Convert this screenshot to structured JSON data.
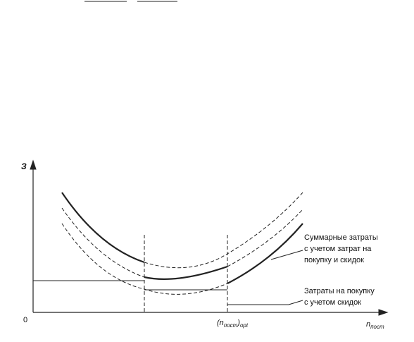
{
  "axes": {
    "y_label": "З",
    "origin": "0",
    "x_label": {
      "main": "n",
      "sub": "пост"
    }
  },
  "optimum_label": {
    "main": "(n",
    "sub": "пост",
    "close": ")",
    "sub2": "opt"
  },
  "annotations": [
    {
      "lines": [
        "Суммарные затраты",
        "с учетом затрат на",
        "покупку и скидок"
      ]
    },
    {
      "lines": [
        "Затраты на покупку",
        "с учетом скидок"
      ]
    }
  ]
}
